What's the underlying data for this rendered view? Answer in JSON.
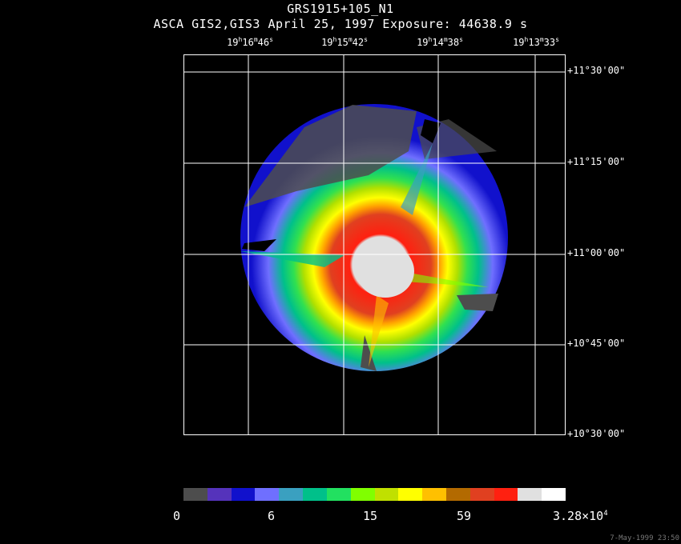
{
  "title": "GRS1915+105_N1",
  "subtitle": "ASCA GIS2,GIS3 April 25, 1997 Exposure: 44638.9 s",
  "ra_labels": [
    {
      "h": "19",
      "m": "16",
      "s": "46"
    },
    {
      "h": "19",
      "m": "15",
      "s": "42"
    },
    {
      "h": "19",
      "m": "14",
      "s": "38"
    },
    {
      "h": "19",
      "m": "13",
      "s": "33"
    }
  ],
  "dec_labels": [
    "+11°30'00\"",
    "+11°15'00\"",
    "+11°00'00\"",
    "+10°45'00\"",
    "+10°30'00\""
  ],
  "colorbar": {
    "colors": [
      "#4d4d4d",
      "#5533bb",
      "#1111cc",
      "#6f6fff",
      "#3aa0c0",
      "#00c08a",
      "#22e060",
      "#80ff00",
      "#c0e000",
      "#ffff00",
      "#ffc000",
      "#b36a00",
      "#e04020",
      "#ff2010",
      "#e0e0e0",
      "#ffffff"
    ],
    "labels": [
      {
        "text": "0"
      },
      {
        "text": "6"
      },
      {
        "text": "15"
      },
      {
        "text": "59"
      },
      {
        "text": "3.28×10",
        "sup": "4"
      }
    ]
  },
  "timestamp": "7-May-1999 23:50"
}
